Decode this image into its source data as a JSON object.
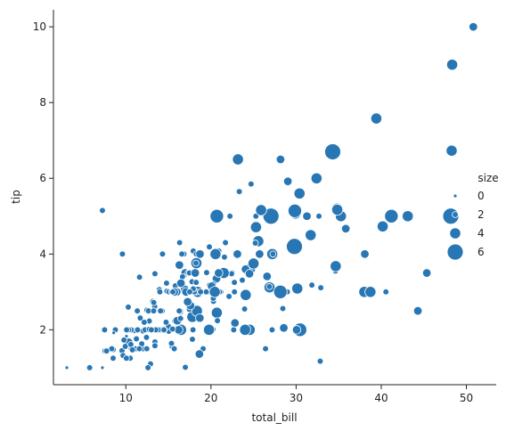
{
  "chart_data": {
    "type": "scatter",
    "xlabel": "total_bill",
    "ylabel": "tip",
    "xlim": [
      1.5,
      53.5
    ],
    "ylim": [
      0.55,
      10.45
    ],
    "xticks": [
      "10",
      "20",
      "30",
      "40",
      "50"
    ],
    "yticks": [
      "2",
      "4",
      "6",
      "8",
      "10"
    ],
    "grid": false,
    "legend": {
      "title": "size",
      "placement": "right",
      "entries": [
        {
          "label": "0",
          "value": 1
        },
        {
          "label": "2",
          "value": 2
        },
        {
          "label": "4",
          "value": 4
        },
        {
          "label": "6",
          "value": 6
        }
      ]
    },
    "colors": {
      "marker": "#2877b4",
      "edge": "#ffffff",
      "axis": "#222222"
    },
    "points": [
      [
        16.99,
        1.01,
        2
      ],
      [
        10.34,
        1.66,
        3
      ],
      [
        21.01,
        3.5,
        3
      ],
      [
        23.68,
        3.31,
        2
      ],
      [
        24.59,
        3.61,
        4
      ],
      [
        25.29,
        4.71,
        4
      ],
      [
        8.77,
        2.0,
        2
      ],
      [
        26.88,
        3.12,
        4
      ],
      [
        15.04,
        1.96,
        2
      ],
      [
        14.78,
        3.23,
        2
      ],
      [
        10.27,
        1.71,
        2
      ],
      [
        35.26,
        5.0,
        4
      ],
      [
        15.42,
        1.57,
        2
      ],
      [
        18.43,
        3.0,
        4
      ],
      [
        14.83,
        3.02,
        2
      ],
      [
        21.58,
        3.92,
        2
      ],
      [
        10.33,
        1.67,
        3
      ],
      [
        16.29,
        3.71,
        3
      ],
      [
        16.97,
        3.5,
        3
      ],
      [
        20.65,
        3.35,
        3
      ],
      [
        17.92,
        4.08,
        2
      ],
      [
        20.29,
        2.75,
        2
      ],
      [
        15.77,
        2.23,
        2
      ],
      [
        39.42,
        7.58,
        4
      ],
      [
        19.82,
        3.18,
        2
      ],
      [
        17.81,
        2.34,
        4
      ],
      [
        13.37,
        2.0,
        2
      ],
      [
        12.69,
        2.0,
        2
      ],
      [
        21.7,
        4.3,
        2
      ],
      [
        19.65,
        3.0,
        2
      ],
      [
        9.55,
        1.45,
        2
      ],
      [
        18.35,
        2.5,
        4
      ],
      [
        15.06,
        3.0,
        2
      ],
      [
        20.69,
        2.45,
        4
      ],
      [
        17.78,
        3.27,
        2
      ],
      [
        24.06,
        3.6,
        3
      ],
      [
        16.31,
        2.0,
        3
      ],
      [
        16.93,
        3.07,
        3
      ],
      [
        18.69,
        2.31,
        3
      ],
      [
        31.27,
        5.0,
        3
      ],
      [
        16.04,
        2.24,
        3
      ],
      [
        17.46,
        2.54,
        2
      ],
      [
        13.94,
        3.06,
        2
      ],
      [
        9.68,
        1.32,
        2
      ],
      [
        30.4,
        5.6,
        4
      ],
      [
        18.29,
        3.0,
        2
      ],
      [
        22.23,
        5.0,
        2
      ],
      [
        32.4,
        6.0,
        4
      ],
      [
        28.55,
        2.05,
        3
      ],
      [
        18.04,
        3.0,
        2
      ],
      [
        12.54,
        2.5,
        2
      ],
      [
        10.29,
        2.6,
        2
      ],
      [
        34.81,
        5.2,
        4
      ],
      [
        9.94,
        1.56,
        2
      ],
      [
        25.56,
        4.34,
        4
      ],
      [
        19.49,
        3.51,
        2
      ],
      [
        38.01,
        3.0,
        4
      ],
      [
        26.41,
        1.5,
        2
      ],
      [
        11.24,
        1.76,
        2
      ],
      [
        48.27,
        6.73,
        4
      ],
      [
        20.29,
        3.21,
        2
      ],
      [
        13.81,
        2.0,
        2
      ],
      [
        11.02,
        1.98,
        2
      ],
      [
        18.29,
        3.76,
        4
      ],
      [
        17.59,
        2.64,
        3
      ],
      [
        20.08,
        3.15,
        3
      ],
      [
        16.45,
        2.47,
        2
      ],
      [
        3.07,
        1.0,
        1
      ],
      [
        20.23,
        2.01,
        2
      ],
      [
        15.01,
        2.09,
        2
      ],
      [
        12.02,
        1.97,
        2
      ],
      [
        17.07,
        3.0,
        3
      ],
      [
        26.86,
        3.14,
        2
      ],
      [
        25.28,
        5.0,
        2
      ],
      [
        14.73,
        2.2,
        2
      ],
      [
        10.51,
        1.25,
        2
      ],
      [
        17.92,
        3.08,
        2
      ],
      [
        27.2,
        4.0,
        4
      ],
      [
        22.76,
        3.0,
        2
      ],
      [
        17.29,
        2.71,
        2
      ],
      [
        19.44,
        3.0,
        2
      ],
      [
        16.66,
        3.4,
        2
      ],
      [
        10.07,
        1.83,
        1
      ],
      [
        32.68,
        5.0,
        2
      ],
      [
        15.98,
        2.03,
        2
      ],
      [
        34.83,
        5.17,
        4
      ],
      [
        13.03,
        2.0,
        2
      ],
      [
        18.28,
        4.0,
        2
      ],
      [
        24.71,
        5.85,
        2
      ],
      [
        21.16,
        3.0,
        2
      ],
      [
        28.97,
        3.0,
        2
      ],
      [
        22.49,
        3.5,
        2
      ],
      [
        5.75,
        1.0,
        2
      ],
      [
        16.32,
        4.3,
        2
      ],
      [
        22.75,
        3.25,
        2
      ],
      [
        40.17,
        4.73,
        4
      ],
      [
        27.28,
        4.0,
        2
      ],
      [
        12.03,
        1.5,
        2
      ],
      [
        21.01,
        3.0,
        2
      ],
      [
        12.46,
        1.5,
        2
      ],
      [
        11.35,
        2.5,
        2
      ],
      [
        15.38,
        3.0,
        2
      ],
      [
        44.3,
        2.5,
        3
      ],
      [
        22.42,
        3.48,
        2
      ],
      [
        20.92,
        4.08,
        2
      ],
      [
        15.36,
        1.64,
        2
      ],
      [
        20.49,
        4.06,
        2
      ],
      [
        25.21,
        4.29,
        2
      ],
      [
        18.24,
        3.76,
        2
      ],
      [
        14.31,
        4.0,
        2
      ],
      [
        14.0,
        3.0,
        2
      ],
      [
        7.25,
        1.0,
        1
      ],
      [
        38.07,
        4.0,
        3
      ],
      [
        23.95,
        2.55,
        2
      ],
      [
        25.71,
        4.0,
        3
      ],
      [
        17.31,
        3.5,
        2
      ],
      [
        29.93,
        5.07,
        4
      ],
      [
        10.65,
        1.5,
        2
      ],
      [
        12.43,
        1.8,
        2
      ],
      [
        24.08,
        2.92,
        4
      ],
      [
        11.69,
        2.31,
        2
      ],
      [
        13.42,
        1.68,
        2
      ],
      [
        14.26,
        2.5,
        2
      ],
      [
        15.95,
        2.0,
        2
      ],
      [
        12.48,
        2.52,
        2
      ],
      [
        29.8,
        4.2,
        6
      ],
      [
        8.52,
        1.48,
        2
      ],
      [
        14.52,
        2.0,
        2
      ],
      [
        11.38,
        2.0,
        2
      ],
      [
        22.82,
        2.18,
        3
      ],
      [
        19.08,
        1.5,
        2
      ],
      [
        20.27,
        2.83,
        2
      ],
      [
        11.17,
        1.5,
        2
      ],
      [
        12.26,
        2.0,
        2
      ],
      [
        18.26,
        3.25,
        2
      ],
      [
        8.51,
        1.25,
        2
      ],
      [
        10.33,
        2.0,
        2
      ],
      [
        14.15,
        2.0,
        2
      ],
      [
        16.0,
        2.0,
        2
      ],
      [
        13.16,
        2.75,
        2
      ],
      [
        17.47,
        3.5,
        2
      ],
      [
        34.3,
        6.7,
        6
      ],
      [
        41.19,
        5.0,
        5
      ],
      [
        27.05,
        5.0,
        6
      ],
      [
        16.43,
        2.3,
        2
      ],
      [
        8.35,
        1.5,
        2
      ],
      [
        18.64,
        1.36,
        3
      ],
      [
        11.87,
        1.63,
        2
      ],
      [
        9.78,
        1.73,
        2
      ],
      [
        7.51,
        2.0,
        2
      ],
      [
        14.07,
        2.5,
        2
      ],
      [
        13.13,
        2.0,
        2
      ],
      [
        17.26,
        2.74,
        3
      ],
      [
        24.55,
        2.0,
        4
      ],
      [
        19.77,
        2.0,
        4
      ],
      [
        29.85,
        5.14,
        5
      ],
      [
        48.17,
        5.0,
        6
      ],
      [
        25.0,
        3.75,
        4
      ],
      [
        13.39,
        2.61,
        2
      ],
      [
        16.49,
        2.0,
        4
      ],
      [
        21.5,
        3.5,
        4
      ],
      [
        12.66,
        2.5,
        2
      ],
      [
        16.21,
        2.0,
        3
      ],
      [
        13.81,
        2.0,
        2
      ],
      [
        17.51,
        3.0,
        2
      ],
      [
        24.52,
        3.48,
        3
      ],
      [
        20.76,
        2.24,
        2
      ],
      [
        31.71,
        4.5,
        4
      ],
      [
        10.59,
        1.61,
        2
      ],
      [
        10.63,
        2.0,
        2
      ],
      [
        50.81,
        10.0,
        3
      ],
      [
        15.81,
        3.16,
        2
      ],
      [
        7.25,
        5.15,
        2
      ],
      [
        31.85,
        3.18,
        2
      ],
      [
        16.82,
        4.0,
        2
      ],
      [
        32.9,
        3.11,
        2
      ],
      [
        17.89,
        2.0,
        2
      ],
      [
        14.48,
        2.0,
        2
      ],
      [
        9.6,
        4.0,
        2
      ],
      [
        34.63,
        3.55,
        2
      ],
      [
        34.65,
        3.68,
        4
      ],
      [
        23.33,
        5.65,
        2
      ],
      [
        45.35,
        3.5,
        3
      ],
      [
        23.17,
        6.5,
        4
      ],
      [
        40.55,
        3.0,
        2
      ],
      [
        20.69,
        5.0,
        5
      ],
      [
        20.9,
        3.5,
        3
      ],
      [
        30.46,
        2.0,
        5
      ],
      [
        18.15,
        3.5,
        3
      ],
      [
        23.1,
        4.0,
        3
      ],
      [
        15.69,
        1.5,
        2
      ],
      [
        19.81,
        4.19,
        2
      ],
      [
        28.44,
        2.56,
        2
      ],
      [
        15.48,
        2.02,
        2
      ],
      [
        16.58,
        4.0,
        2
      ],
      [
        7.56,
        1.44,
        2
      ],
      [
        10.34,
        2.0,
        2
      ],
      [
        43.11,
        5.0,
        4
      ],
      [
        13.0,
        2.0,
        2
      ],
      [
        13.51,
        2.0,
        2
      ],
      [
        18.71,
        4.0,
        3
      ],
      [
        12.74,
        2.01,
        2
      ],
      [
        13.0,
        2.0,
        2
      ],
      [
        16.4,
        2.5,
        2
      ],
      [
        20.53,
        4.0,
        4
      ],
      [
        16.47,
        3.23,
        3
      ],
      [
        26.59,
        3.41,
        3
      ],
      [
        38.73,
        3.0,
        4
      ],
      [
        24.27,
        2.03,
        2
      ],
      [
        12.76,
        2.23,
        2
      ],
      [
        30.06,
        2.0,
        3
      ],
      [
        25.89,
        5.16,
        4
      ],
      [
        48.33,
        9.0,
        4
      ],
      [
        13.27,
        2.5,
        2
      ],
      [
        28.17,
        6.5,
        3
      ],
      [
        12.9,
        1.1,
        2
      ],
      [
        28.15,
        3.0,
        5
      ],
      [
        11.59,
        1.5,
        2
      ],
      [
        7.74,
        1.44,
        2
      ],
      [
        30.14,
        3.09,
        4
      ],
      [
        12.16,
        2.2,
        2
      ],
      [
        13.42,
        3.48,
        2
      ],
      [
        8.58,
        1.92,
        1
      ],
      [
        15.98,
        3.0,
        3
      ],
      [
        13.42,
        1.58,
        2
      ],
      [
        16.27,
        2.5,
        2
      ],
      [
        10.09,
        2.0,
        2
      ],
      [
        20.45,
        3.0,
        4
      ],
      [
        13.28,
        2.72,
        2
      ],
      [
        22.12,
        2.88,
        2
      ],
      [
        24.01,
        2.0,
        4
      ],
      [
        15.69,
        3.0,
        3
      ],
      [
        11.61,
        3.39,
        2
      ],
      [
        10.77,
        1.47,
        2
      ],
      [
        15.53,
        3.0,
        2
      ],
      [
        10.07,
        1.25,
        2
      ],
      [
        12.6,
        1.0,
        2
      ],
      [
        32.83,
        1.17,
        2
      ],
      [
        35.83,
        4.67,
        3
      ],
      [
        29.03,
        5.92,
        3
      ],
      [
        27.18,
        2.0,
        2
      ],
      [
        22.67,
        2.0,
        2
      ],
      [
        17.82,
        1.75,
        2
      ],
      [
        18.78,
        3.0,
        2
      ]
    ]
  }
}
